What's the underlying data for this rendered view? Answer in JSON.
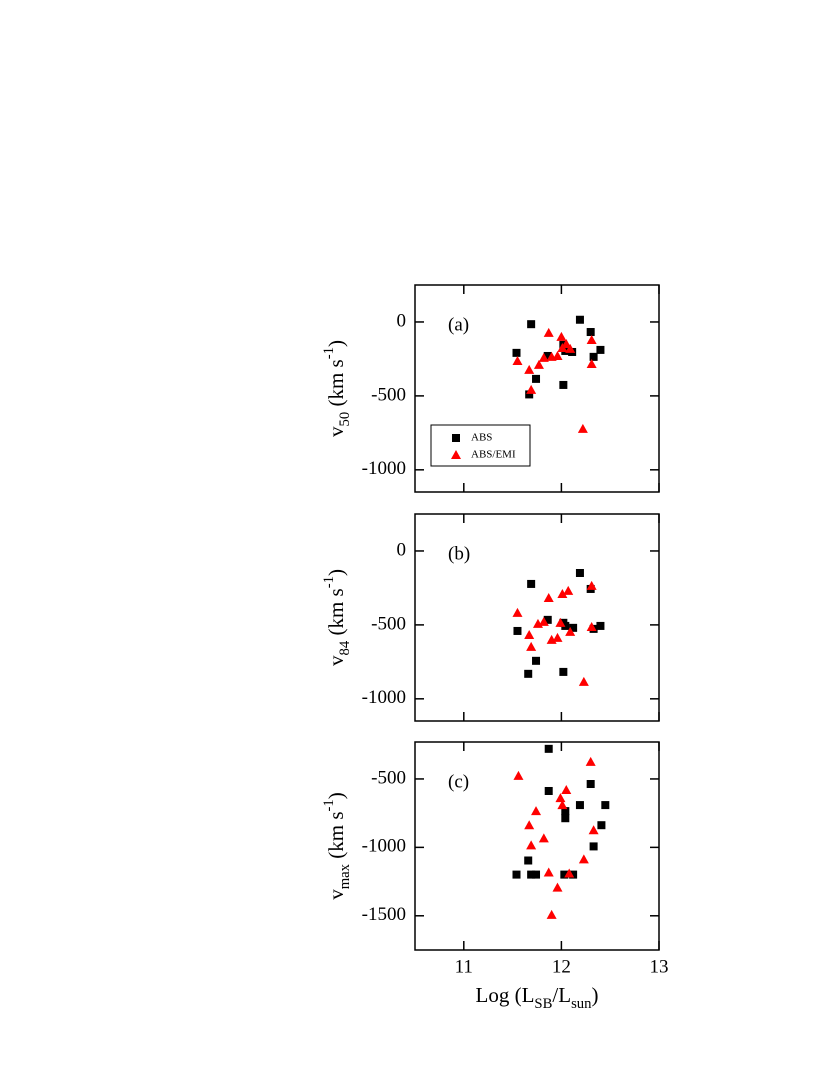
{
  "chart_data": [
    {
      "type": "scatter",
      "panel_label": "(a)",
      "ylabel": [
        "v",
        "50",
        " (km s",
        "-1",
        ")"
      ],
      "xlim": [
        10.5,
        13
      ],
      "xticks": [
        11,
        12,
        13
      ],
      "ylim": [
        -1150,
        250
      ],
      "yticks": [
        0,
        -500,
        -1000
      ],
      "legend": "lower left",
      "series": [
        {
          "name": "ABS",
          "color": "#000000",
          "marker": "square",
          "x": [
            11.54,
            11.69,
            11.74,
            11.67,
            11.86,
            12.02,
            12.04,
            12.02,
            12.11,
            12.19,
            12.3,
            12.33,
            12.4
          ],
          "y": [
            -209,
            -15,
            -385,
            -490,
            -230,
            -155,
            -196,
            -426,
            -203,
            15,
            -68,
            -236,
            -189
          ]
        },
        {
          "name": "ABS/EMI",
          "color": "#ff0000",
          "marker": "triangle",
          "x": [
            11.55,
            11.67,
            11.69,
            11.77,
            11.82,
            11.87,
            11.9,
            11.96,
            12.0,
            12.01,
            12.05,
            12.09,
            12.31,
            12.31,
            12.22
          ],
          "y": [
            -264,
            -324,
            -459,
            -290,
            -243,
            -74,
            -236,
            -230,
            -101,
            -176,
            -149,
            -182,
            -122,
            -284,
            -723
          ]
        }
      ]
    },
    {
      "type": "scatter",
      "panel_label": "(b)",
      "ylabel": [
        "v",
        "84",
        " (km s",
        "-1",
        ")"
      ],
      "xlim": [
        10.5,
        13
      ],
      "xticks": [
        11,
        12,
        13
      ],
      "ylim": [
        -1150,
        250
      ],
      "yticks": [
        0,
        -500,
        -1000
      ],
      "series": [
        {
          "name": "ABS",
          "color": "#000000",
          "marker": "square",
          "x": [
            11.55,
            11.69,
            11.66,
            11.74,
            11.86,
            12.02,
            12.04,
            12.02,
            12.12,
            12.19,
            12.3,
            12.33,
            12.4
          ],
          "y": [
            -541,
            -223,
            -831,
            -743,
            -466,
            -486,
            -507,
            -818,
            -520,
            -149,
            -257,
            -527,
            -507
          ]
        },
        {
          "name": "ABS/EMI",
          "color": "#ff0000",
          "marker": "triangle",
          "x": [
            11.55,
            11.67,
            11.69,
            11.76,
            11.82,
            11.87,
            11.9,
            11.96,
            11.99,
            12.01,
            12.07,
            12.09,
            12.31,
            12.31,
            12.23
          ],
          "y": [
            -419,
            -568,
            -649,
            -493,
            -480,
            -318,
            -601,
            -588,
            -486,
            -291,
            -270,
            -547,
            -236,
            -514,
            -885
          ]
        }
      ]
    },
    {
      "type": "scatter",
      "panel_label": "(c)",
      "ylabel": [
        "v",
        "max",
        " (km s",
        "-1",
        ")"
      ],
      "xlabel": [
        "Log (L",
        "SB",
        "/L",
        "sun",
        ")"
      ],
      "xlim": [
        10.5,
        13
      ],
      "xticks": [
        11,
        12,
        13
      ],
      "ylim": [
        -1750,
        -230
      ],
      "yticks": [
        -500,
        -1000,
        -1500
      ],
      "series": [
        {
          "name": "ABS",
          "color": "#000000",
          "marker": "square",
          "x": [
            11.54,
            11.66,
            11.69,
            11.74,
            11.87,
            11.87,
            12.04,
            12.04,
            12.03,
            12.12,
            12.19,
            12.3,
            12.33,
            12.45,
            12.41
          ],
          "y": [
            -1199,
            -1096,
            -1199,
            -1199,
            -280,
            -588,
            -735,
            -787,
            -1199,
            -1199,
            -691,
            -537,
            -993,
            -691,
            -838
          ]
        },
        {
          "name": "ABS/EMI",
          "color": "#ff0000",
          "marker": "triangle",
          "x": [
            11.56,
            11.67,
            11.69,
            11.74,
            11.82,
            11.87,
            11.9,
            11.96,
            11.99,
            12.01,
            12.05,
            12.08,
            12.3,
            12.33,
            12.23
          ],
          "y": [
            -478,
            -838,
            -985,
            -735,
            -934,
            -1184,
            -1493,
            -1294,
            -640,
            -691,
            -581,
            -1191,
            -375,
            -875,
            -1088
          ]
        }
      ]
    }
  ]
}
